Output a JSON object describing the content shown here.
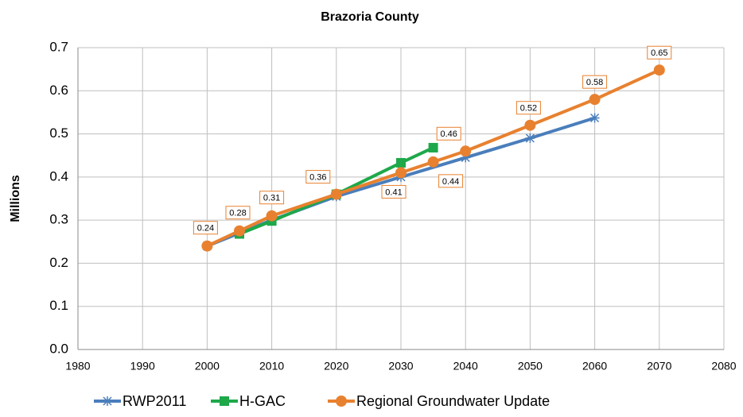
{
  "chart_data": {
    "type": "line",
    "title": "Brazoria County",
    "y_label": "Millions",
    "xlim": [
      1980,
      2080
    ],
    "xticks": [
      1980,
      1990,
      2000,
      2010,
      2020,
      2030,
      2040,
      2050,
      2060,
      2070,
      2080
    ],
    "ylim": [
      0,
      0.7
    ],
    "yticks": [
      {
        "value": 0,
        "label": "0.0"
      },
      0.1,
      0.2,
      0.3,
      0.4,
      0.5,
      0.6,
      0.7
    ],
    "grid": true,
    "legend": "bottom",
    "series": [
      {
        "name": "RWP2011",
        "color": "#4a7ebb",
        "marker": "star",
        "x": [
          2000,
          2010,
          2020,
          2030,
          2040,
          2050,
          2060
        ],
        "values": [
          0.24,
          0.3,
          0.355,
          0.4,
          0.445,
          0.49,
          0.537
        ]
      },
      {
        "name": "H-GAC",
        "color": "#1ea84a",
        "marker": "square",
        "x": [
          2005,
          2010,
          2020,
          2030,
          2035
        ],
        "values": [
          0.268,
          0.298,
          0.36,
          0.433,
          0.468
        ]
      },
      {
        "name": "Regional Groundwater Update",
        "color": "#e8812f",
        "marker": "circle",
        "x": [
          2000,
          2005,
          2010,
          2020,
          2030,
          2035,
          2040,
          2050,
          2060,
          2070
        ],
        "values": [
          0.24,
          0.275,
          0.31,
          0.36,
          0.41,
          0.435,
          0.46,
          0.52,
          0.58,
          0.648
        ],
        "value_labels": [
          "0.24",
          "0.28",
          "0.31",
          "0.36",
          "0.41",
          "0.44",
          "0.46",
          "0.52",
          "0.58",
          "0.65"
        ]
      }
    ]
  }
}
